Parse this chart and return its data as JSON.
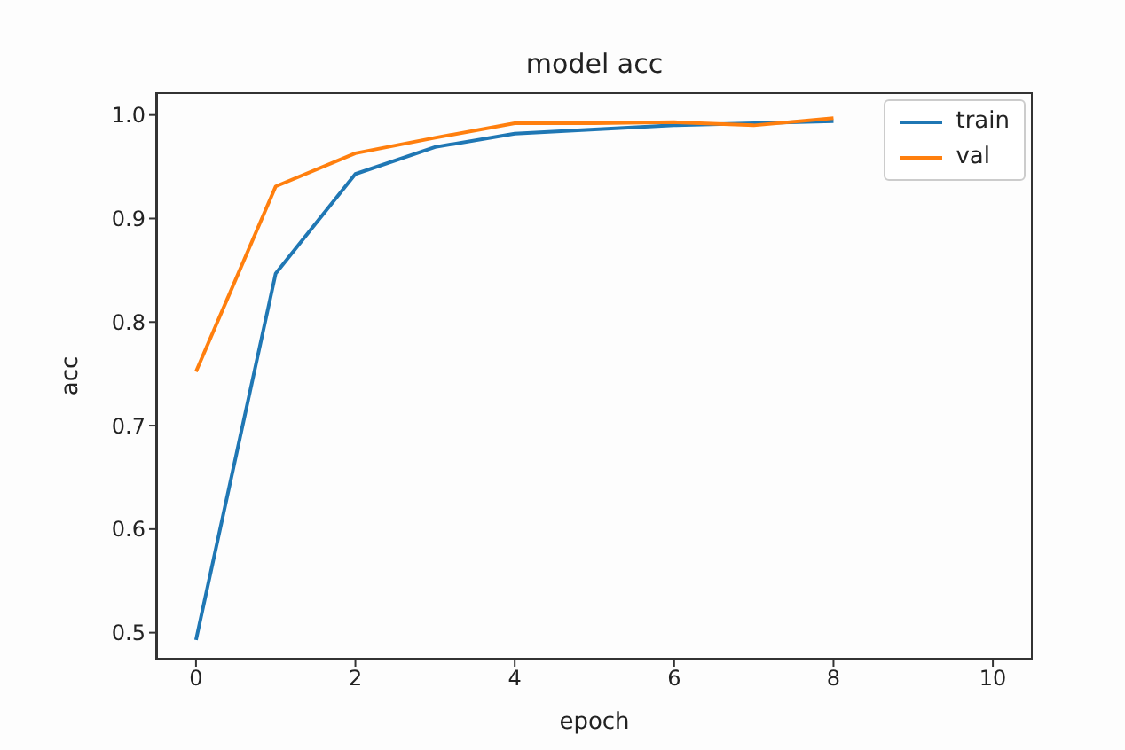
{
  "chart_data": {
    "type": "line",
    "title": "model acc",
    "xlabel": "epoch",
    "ylabel": "acc",
    "x": [
      0,
      1,
      2,
      3,
      4,
      5,
      6,
      7,
      8
    ],
    "series": [
      {
        "name": "train",
        "color": "#1f77b4",
        "values": [
          0.493,
          0.847,
          0.943,
          0.969,
          0.982,
          0.986,
          0.99,
          0.992,
          0.994
        ]
      },
      {
        "name": "val",
        "color": "#ff7f0e",
        "values": [
          0.752,
          0.931,
          0.963,
          0.978,
          0.992,
          0.992,
          0.993,
          0.99,
          0.997
        ]
      }
    ],
    "xlim": [
      -0.5,
      10.5
    ],
    "xticks": [
      0,
      2,
      4,
      6,
      8,
      10
    ],
    "ylim": [
      0.474,
      1.022
    ],
    "yticks": [
      0.5,
      0.6,
      0.7,
      0.8,
      0.9,
      {
        "value": 1.0,
        "label": "1.0"
      }
    ],
    "grid": false,
    "legend": "top right",
    "marker": "none",
    "line_style": "solid"
  }
}
